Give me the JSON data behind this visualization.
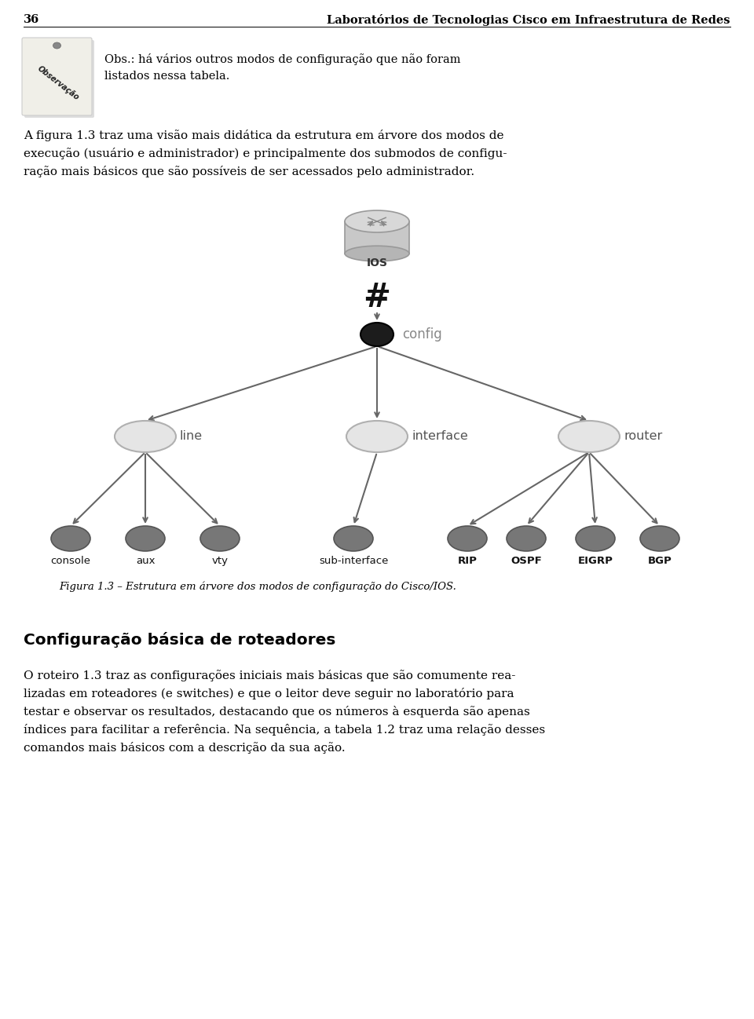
{
  "page_number": "36",
  "header_title": "Laboratórios de Tecnologias Cisco em Infraestrutura de Redes",
  "obs_text_line1": "Obs.: há vários outros modos de configuração que não foram",
  "obs_text_line2": "listados nessa tabela.",
  "para1_line1": "A figura 1.3 traz uma visão mais didática da estrutura em árvore dos modos de",
  "para1_line2": "execução (usuário e administrador) e principalmente dos submodos de configu-",
  "para1_line3": "ração mais básicos que são possíveis de ser acessados pelo administrador.",
  "figure_caption": "Figura 1.3 – Estrutura em árvore dos modos de configuração do Cisco/IOS.",
  "section_title": "Configuração básica de roteadores",
  "para2_line1": "O roteiro 1.3 traz as configurações iniciais mais básicas que são comumente rea-",
  "para2_line2": "lizadas em roteadores (e switches) e que o leitor deve seguir no laboratório para",
  "para2_line3": "testar e observar os resultados, destacando que os números à esquerda são apenas",
  "para2_line4": "índices para facilitar a referência. Na sequência, a tabela 1.2 traz uma relação desses",
  "para2_line5": "comandos mais básicos com a descrição da sua ação.",
  "bg_color": "#ffffff",
  "text_color": "#000000",
  "arrow_color": "#666666"
}
